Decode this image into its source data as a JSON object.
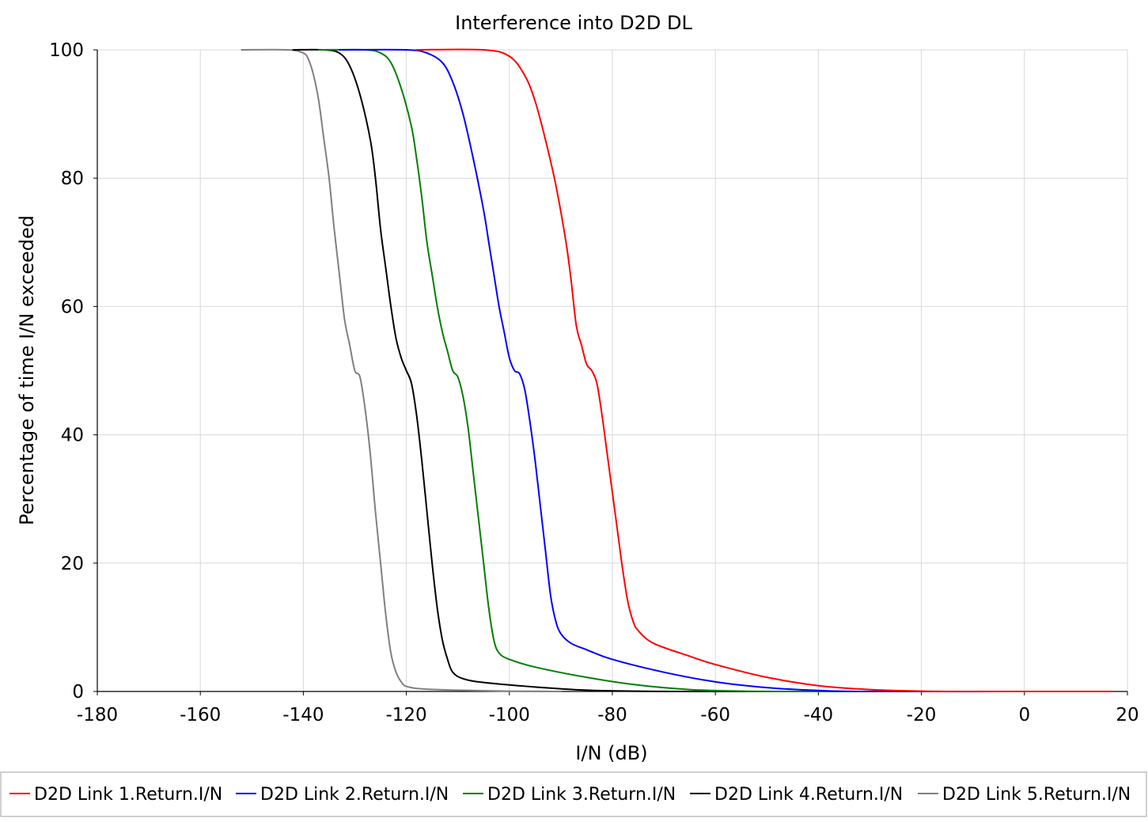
{
  "chart_data": {
    "type": "line",
    "title": "Interference into D2D DL",
    "xlabel": "I/N (dB)",
    "ylabel": "Percentage of time I/N exceeded",
    "xlim": [
      -180,
      20
    ],
    "ylim": [
      0,
      100
    ],
    "x_ticks": [
      "-180",
      "-160",
      "-140",
      "-120",
      "-100",
      "-80",
      "-60",
      "-40",
      "-20",
      "0",
      "20"
    ],
    "y_ticks": [
      "0",
      "20",
      "40",
      "60",
      "80",
      "100"
    ],
    "grid": true,
    "legend_position": "bottom",
    "series": [
      {
        "name": "D2D Link 1.Return.I/N",
        "color": "#ff0000",
        "points": [
          [
            -118,
            100
          ],
          [
            -105,
            100
          ],
          [
            -100,
            99
          ],
          [
            -97,
            96
          ],
          [
            -95,
            92
          ],
          [
            -93,
            86
          ],
          [
            -91,
            79
          ],
          [
            -89,
            70
          ],
          [
            -88,
            64
          ],
          [
            -87,
            57
          ],
          [
            -86,
            54
          ],
          [
            -85,
            51
          ],
          [
            -84,
            50
          ],
          [
            -83,
            48
          ],
          [
            -82,
            43
          ],
          [
            -81,
            37
          ],
          [
            -80,
            31
          ],
          [
            -79,
            25
          ],
          [
            -78,
            19
          ],
          [
            -77,
            14
          ],
          [
            -76,
            11
          ],
          [
            -75,
            9.5
          ],
          [
            -72,
            7.5
          ],
          [
            -65,
            5.5
          ],
          [
            -60,
            4.2
          ],
          [
            -50,
            2.2
          ],
          [
            -40,
            0.9
          ],
          [
            -30,
            0.3
          ],
          [
            -20,
            0.05
          ],
          [
            -10,
            0
          ],
          [
            17,
            0
          ]
        ]
      },
      {
        "name": "D2D Link 2.Return.I/N",
        "color": "#0000ff",
        "points": [
          [
            -133,
            100
          ],
          [
            -120,
            100
          ],
          [
            -116,
            99.5
          ],
          [
            -113,
            98
          ],
          [
            -111,
            95
          ],
          [
            -109,
            90
          ],
          [
            -107,
            83
          ],
          [
            -105,
            75
          ],
          [
            -104,
            70
          ],
          [
            -103,
            65
          ],
          [
            -102,
            60
          ],
          [
            -101,
            56
          ],
          [
            -100,
            52
          ],
          [
            -99,
            50
          ],
          [
            -98,
            49.5
          ],
          [
            -97,
            47
          ],
          [
            -96,
            42
          ],
          [
            -95,
            36
          ],
          [
            -94,
            29
          ],
          [
            -93,
            22
          ],
          [
            -92,
            15
          ],
          [
            -91,
            11
          ],
          [
            -90,
            9
          ],
          [
            -88,
            7.5
          ],
          [
            -85,
            6.5
          ],
          [
            -80,
            5
          ],
          [
            -70,
            3
          ],
          [
            -60,
            1.5
          ],
          [
            -50,
            0.6
          ],
          [
            -40,
            0.15
          ],
          [
            -30,
            0
          ],
          [
            10,
            0
          ]
        ]
      },
      {
        "name": "D2D Link 3.Return.I/N",
        "color": "#008000",
        "points": [
          [
            -137,
            100
          ],
          [
            -128,
            100
          ],
          [
            -125,
            99.5
          ],
          [
            -123,
            98
          ],
          [
            -121,
            94
          ],
          [
            -119,
            88
          ],
          [
            -118,
            83
          ],
          [
            -117,
            77
          ],
          [
            -116,
            70
          ],
          [
            -115,
            65
          ],
          [
            -114,
            60
          ],
          [
            -113,
            56
          ],
          [
            -112,
            53
          ],
          [
            -111,
            50
          ],
          [
            -110,
            49
          ],
          [
            -109,
            46
          ],
          [
            -108,
            41
          ],
          [
            -107,
            34
          ],
          [
            -106,
            27
          ],
          [
            -105,
            20
          ],
          [
            -104,
            13
          ],
          [
            -103,
            8
          ],
          [
            -102,
            6
          ],
          [
            -100,
            5
          ],
          [
            -95,
            3.8
          ],
          [
            -85,
            2.2
          ],
          [
            -75,
            1
          ],
          [
            -65,
            0.3
          ],
          [
            -55,
            0.05
          ],
          [
            -45,
            0
          ],
          [
            -9,
            0
          ]
        ]
      },
      {
        "name": "D2D Link 4.Return.I/N",
        "color": "#000000",
        "points": [
          [
            -142,
            100
          ],
          [
            -136,
            100
          ],
          [
            -133,
            99.5
          ],
          [
            -131,
            97.5
          ],
          [
            -129,
            93
          ],
          [
            -127,
            86
          ],
          [
            -126,
            80
          ],
          [
            -125,
            72
          ],
          [
            -124,
            66
          ],
          [
            -123,
            60
          ],
          [
            -122,
            55
          ],
          [
            -121,
            52
          ],
          [
            -120,
            50
          ],
          [
            -119,
            48
          ],
          [
            -118,
            43
          ],
          [
            -117,
            36
          ],
          [
            -116,
            28
          ],
          [
            -115,
            20
          ],
          [
            -114,
            13
          ],
          [
            -113,
            8
          ],
          [
            -112,
            5
          ],
          [
            -111,
            3
          ],
          [
            -109,
            2
          ],
          [
            -105,
            1.4
          ],
          [
            -95,
            0.7
          ],
          [
            -85,
            0.2
          ],
          [
            -75,
            0.05
          ],
          [
            -65,
            0
          ],
          [
            -14,
            0
          ]
        ]
      },
      {
        "name": "D2D Link 5.Return.I/N",
        "color": "#808080",
        "points": [
          [
            -152,
            100
          ],
          [
            -143,
            100
          ],
          [
            -140,
            99.5
          ],
          [
            -139,
            98.5
          ],
          [
            -138,
            96
          ],
          [
            -137,
            92
          ],
          [
            -136,
            86
          ],
          [
            -135,
            80
          ],
          [
            -134,
            72
          ],
          [
            -133,
            65
          ],
          [
            -132,
            58
          ],
          [
            -131,
            54
          ],
          [
            -130,
            50
          ],
          [
            -129,
            49
          ],
          [
            -128,
            44
          ],
          [
            -127,
            37
          ],
          [
            -126,
            28
          ],
          [
            -125,
            20
          ],
          [
            -124,
            12
          ],
          [
            -123,
            6
          ],
          [
            -122,
            3
          ],
          [
            -121,
            1.5
          ],
          [
            -120,
            0.8
          ],
          [
            -117,
            0.4
          ],
          [
            -110,
            0.2
          ],
          [
            -100,
            0.05
          ],
          [
            -90,
            0
          ]
        ]
      }
    ]
  }
}
